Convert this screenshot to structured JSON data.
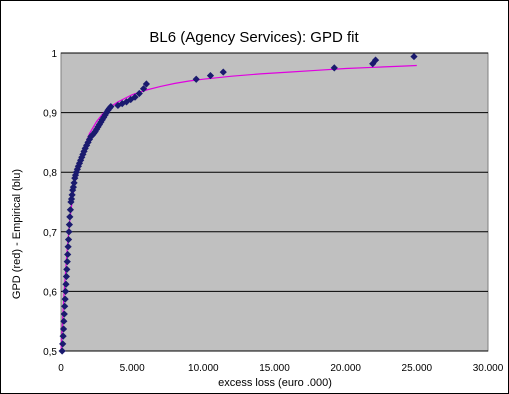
{
  "chart_data": {
    "type": "scatter",
    "title": "BL6 (Agency Services): GPD fit",
    "xlabel": "excess loss (euro .000)",
    "ylabel": "GPD (red) - Empirical (blu)",
    "xlim": [
      0,
      30000
    ],
    "ylim": [
      0.5,
      1.0
    ],
    "x_ticks": [
      0,
      5000,
      10000,
      15000,
      20000,
      25000,
      30000
    ],
    "x_tick_labels": [
      "0",
      "5.000",
      "10.000",
      "15.000",
      "20.000",
      "25.000",
      "30.000"
    ],
    "y_ticks": [
      0.5,
      0.6,
      0.7,
      0.8,
      0.9,
      1.0
    ],
    "y_tick_labels": [
      "0,5",
      "0,6",
      "0,7",
      "0,8",
      "0,9",
      "1"
    ],
    "grid": "horizontal",
    "plot_background": "#c0c0c0",
    "series": [
      {
        "kind": "scatter",
        "color": "#1a1a6e",
        "marker": "diamond",
        "x": [
          80,
          120,
          150,
          180,
          200,
          230,
          260,
          290,
          320,
          350,
          380,
          410,
          440,
          470,
          500,
          530,
          560,
          590,
          620,
          660,
          700,
          740,
          780,
          820,
          870,
          920,
          970,
          1020,
          1080,
          1150,
          1220,
          1300,
          1380,
          1460,
          1540,
          1620,
          1700,
          1800,
          1900,
          2000,
          2100,
          2200,
          2300,
          2400,
          2500,
          2600,
          2700,
          2800,
          2900,
          3000,
          3100,
          3200,
          3300,
          3400,
          3500,
          4000,
          4300,
          4600,
          4900,
          5200,
          5500,
          5800,
          6000,
          9500,
          10500,
          11400,
          19200,
          21900,
          22100,
          24800
        ],
        "y": [
          0.5,
          0.512,
          0.525,
          0.537,
          0.55,
          0.562,
          0.575,
          0.587,
          0.6,
          0.612,
          0.625,
          0.637,
          0.65,
          0.662,
          0.675,
          0.687,
          0.7,
          0.712,
          0.725,
          0.737,
          0.75,
          0.755,
          0.762,
          0.77,
          0.775,
          0.782,
          0.79,
          0.795,
          0.8,
          0.805,
          0.81,
          0.815,
          0.82,
          0.825,
          0.83,
          0.835,
          0.84,
          0.845,
          0.85,
          0.855,
          0.86,
          0.862,
          0.865,
          0.868,
          0.872,
          0.876,
          0.88,
          0.884,
          0.888,
          0.892,
          0.896,
          0.9,
          0.904,
          0.907,
          0.91,
          0.912,
          0.915,
          0.918,
          0.922,
          0.926,
          0.932,
          0.94,
          0.948,
          0.956,
          0.962,
          0.968,
          0.975,
          0.982,
          0.988,
          0.994
        ]
      },
      {
        "kind": "line",
        "color": "#e000e0",
        "x": [
          0,
          200,
          400,
          600,
          800,
          1000,
          1300,
          1600,
          2000,
          2500,
          3000,
          3500,
          4000,
          5000,
          6000,
          7000,
          8000,
          9000,
          10000,
          12000,
          14000,
          16000,
          18000,
          20000,
          22000,
          24000,
          25000
        ],
        "y": [
          0.5,
          0.59,
          0.66,
          0.715,
          0.755,
          0.785,
          0.815,
          0.84,
          0.865,
          0.885,
          0.9,
          0.91,
          0.918,
          0.93,
          0.938,
          0.944,
          0.949,
          0.953,
          0.956,
          0.961,
          0.965,
          0.968,
          0.971,
          0.974,
          0.976,
          0.978,
          0.979
        ]
      }
    ]
  }
}
